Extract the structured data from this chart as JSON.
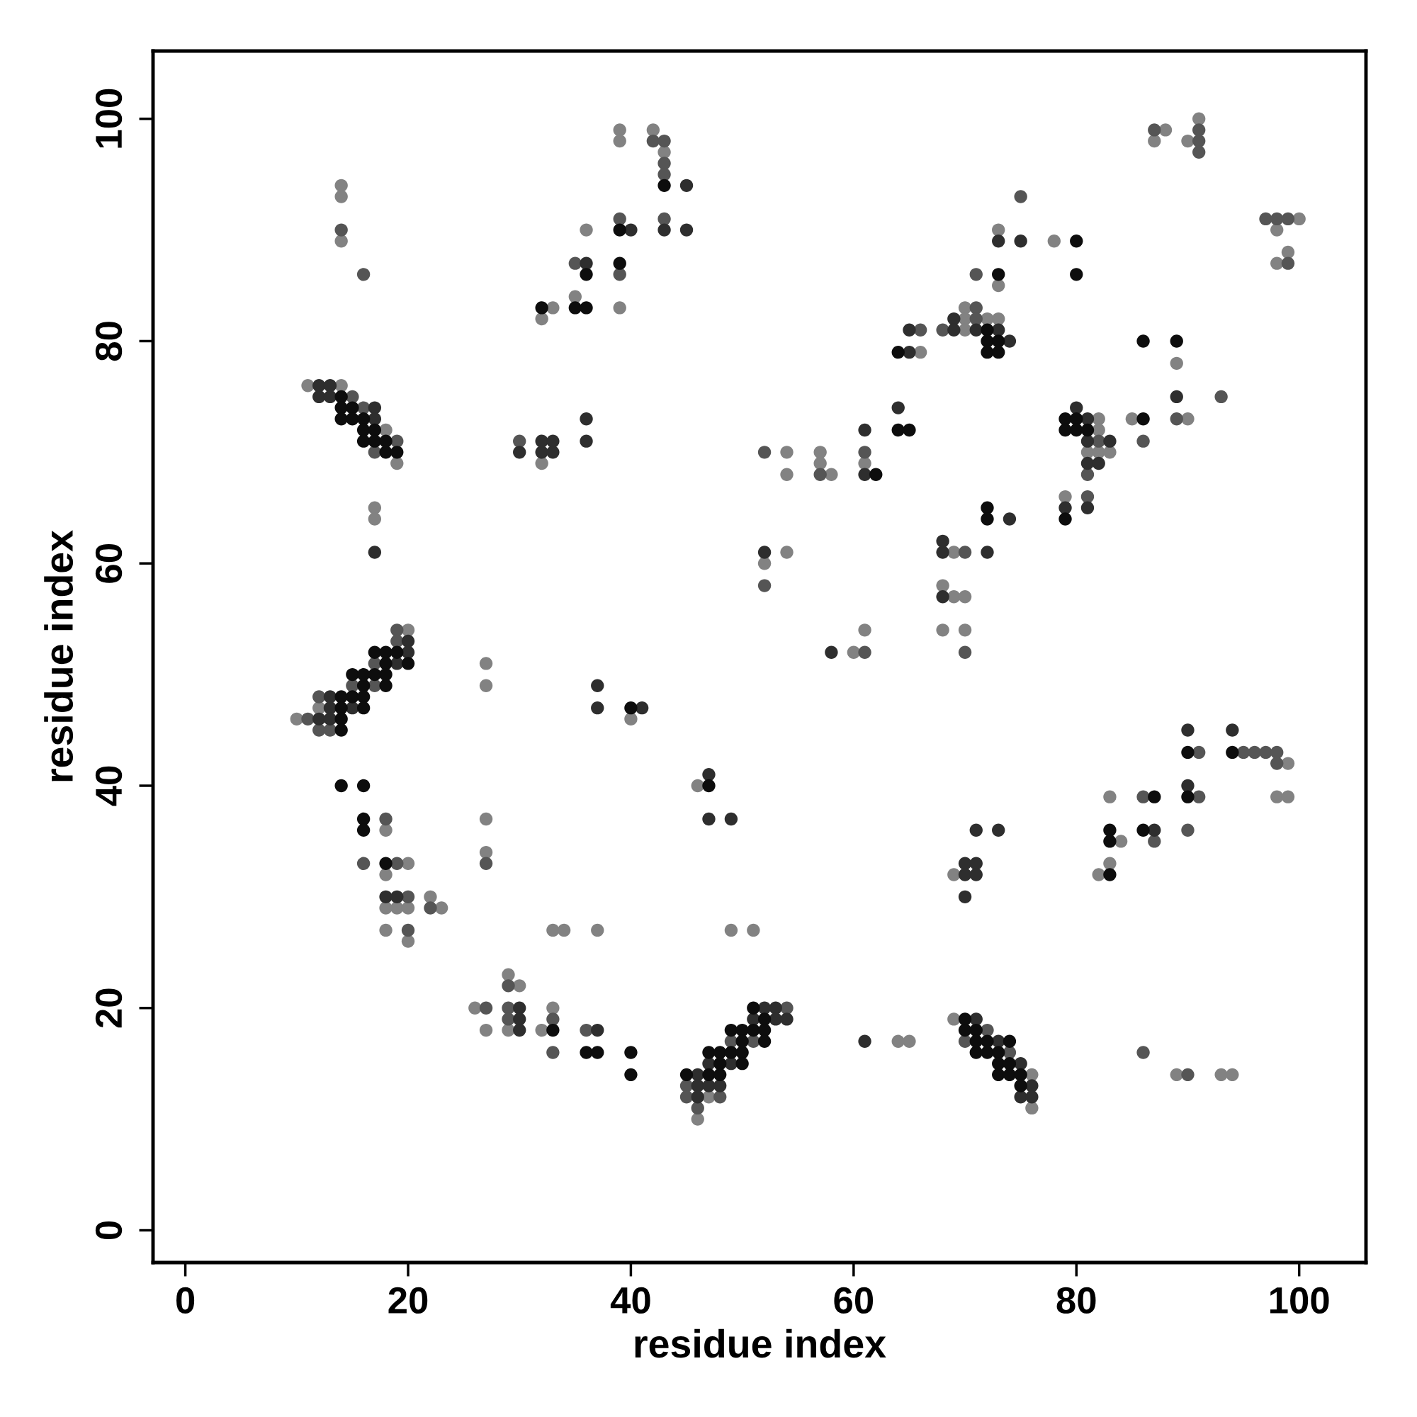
{
  "chart_data": {
    "type": "scatter",
    "xlabel": "residue index",
    "ylabel": "residue index",
    "xlim": [
      -2.9,
      106
    ],
    "ylim": [
      -2.9,
      106.1
    ],
    "xticks": [
      0,
      20,
      40,
      60,
      80,
      100
    ],
    "yticks": [
      0,
      20,
      40,
      60,
      80,
      100
    ],
    "grid": false,
    "marker": "circle",
    "series": [
      {
        "color": "#828282",
        "x": [
          14,
          14,
          14,
          11,
          14,
          18,
          19,
          39,
          39,
          42,
          43,
          36,
          35,
          33,
          39,
          32,
          32,
          17,
          17,
          87,
          88,
          90,
          91,
          100,
          98,
          99,
          98,
          73,
          78,
          73,
          70,
          70,
          72,
          73,
          70,
          66,
          89,
          85,
          90,
          82,
          82,
          81,
          82,
          83,
          79,
          54,
          57,
          57,
          61,
          54,
          58,
          69,
          68,
          69,
          70,
          68,
          70,
          54,
          52,
          61,
          60,
          99,
          83,
          98,
          99,
          84,
          83,
          69,
          82,
          20,
          12,
          10,
          27,
          27,
          40,
          46,
          18,
          27,
          27,
          20,
          18,
          22,
          18,
          19,
          20,
          23,
          18,
          20,
          33,
          34,
          37,
          49,
          51,
          29,
          30,
          26,
          33,
          27,
          29,
          32,
          47,
          46,
          64,
          65,
          69,
          76,
          76,
          89,
          93,
          94
        ],
        "values": [
          94,
          93,
          89,
          76,
          76,
          72,
          69,
          99,
          98,
          99,
          97,
          90,
          84,
          83,
          83,
          82,
          69,
          65,
          64,
          98,
          99,
          98,
          100,
          91,
          90,
          88,
          87,
          90,
          89,
          85,
          83,
          82,
          82,
          82,
          81,
          79,
          78,
          73,
          73,
          73,
          72,
          70,
          70,
          70,
          66,
          70,
          70,
          69,
          69,
          68,
          68,
          61,
          58,
          57,
          57,
          54,
          54,
          61,
          60,
          54,
          52,
          42,
          39,
          39,
          39,
          35,
          33,
          32,
          32,
          54,
          47,
          46,
          51,
          49,
          46,
          40,
          36,
          37,
          34,
          33,
          32,
          30,
          29,
          29,
          29,
          29,
          27,
          26,
          27,
          27,
          27,
          27,
          27,
          23,
          22,
          20,
          20,
          18,
          18,
          18,
          12,
          10,
          17,
          17,
          19,
          14,
          11,
          14,
          14,
          14
        ]
      },
      {
        "color": "#555555",
        "x": [
          14,
          16,
          15,
          16,
          19,
          17,
          42,
          43,
          43,
          43,
          39,
          43,
          35,
          39,
          30,
          87,
          91,
          91,
          91,
          75,
          97,
          98,
          99,
          99,
          71,
          71,
          71,
          68,
          66,
          89,
          93,
          86,
          82,
          81,
          81,
          52,
          61,
          57,
          70,
          70,
          52,
          61,
          91,
          95,
          96,
          97,
          98,
          98,
          86,
          91,
          90,
          87,
          19,
          19,
          17,
          15,
          17,
          12,
          11,
          12,
          13,
          18,
          27,
          16,
          19,
          20,
          22,
          20,
          29,
          27,
          29,
          29,
          33,
          36,
          33,
          54,
          49,
          51,
          45,
          45,
          48,
          46,
          72,
          70,
          74,
          86,
          90
        ],
        "values": [
          90,
          86,
          75,
          74,
          71,
          70,
          98,
          98,
          96,
          95,
          91,
          91,
          87,
          86,
          71,
          99,
          99,
          98,
          97,
          93,
          91,
          91,
          91,
          87,
          86,
          83,
          82,
          81,
          81,
          73,
          75,
          71,
          71,
          68,
          66,
          70,
          70,
          68,
          61,
          52,
          58,
          52,
          43,
          43,
          43,
          43,
          43,
          42,
          39,
          39,
          36,
          35,
          54,
          53,
          51,
          49,
          49,
          48,
          46,
          45,
          45,
          37,
          33,
          33,
          33,
          30,
          29,
          27,
          22,
          20,
          20,
          19,
          19,
          18,
          16,
          20,
          17,
          17,
          13,
          12,
          12,
          11,
          18,
          17,
          16,
          16,
          14
        ]
      },
      {
        "color": "#2e2e2e",
        "x": [
          12,
          13,
          12,
          13,
          17,
          17,
          45,
          40,
          43,
          45,
          36,
          36,
          30,
          32,
          32,
          33,
          33,
          36,
          17,
          73,
          75,
          69,
          69,
          71,
          73,
          74,
          65,
          65,
          89,
          80,
          81,
          81,
          83,
          81,
          82,
          79,
          81,
          64,
          61,
          61,
          74,
          68,
          68,
          72,
          68,
          52,
          58,
          90,
          94,
          90,
          71,
          73,
          87,
          70,
          71,
          70,
          71,
          70,
          20,
          20,
          19,
          13,
          13,
          15,
          12,
          13,
          37,
          37,
          41,
          47,
          47,
          49,
          18,
          19,
          30,
          30,
          30,
          37,
          52,
          53,
          51,
          53,
          54,
          47,
          49,
          46,
          46,
          47,
          48,
          46,
          61,
          71,
          73,
          75,
          76,
          75,
          76
        ],
        "values": [
          76,
          76,
          75,
          75,
          74,
          73,
          94,
          90,
          90,
          90,
          87,
          73,
          70,
          71,
          70,
          71,
          70,
          71,
          61,
          89,
          89,
          82,
          81,
          81,
          81,
          80,
          81,
          79,
          75,
          74,
          73,
          71,
          71,
          69,
          69,
          65,
          65,
          74,
          72,
          68,
          64,
          62,
          61,
          61,
          57,
          61,
          52,
          45,
          45,
          40,
          36,
          36,
          36,
          33,
          33,
          32,
          32,
          30,
          53,
          52,
          51,
          48,
          47,
          47,
          46,
          46,
          49,
          47,
          47,
          41,
          37,
          37,
          30,
          30,
          20,
          19,
          18,
          18,
          20,
          20,
          19,
          19,
          19,
          15,
          15,
          14,
          13,
          13,
          13,
          12,
          17,
          19,
          17,
          15,
          13,
          12,
          12
        ]
      },
      {
        "color": "#0d0d0d",
        "x": [
          14,
          14,
          15,
          14,
          15,
          16,
          16,
          17,
          16,
          17,
          18,
          18,
          19,
          43,
          39,
          39,
          36,
          32,
          35,
          36,
          80,
          73,
          80,
          72,
          72,
          73,
          72,
          73,
          64,
          86,
          89,
          86,
          79,
          80,
          79,
          80,
          81,
          79,
          64,
          65,
          62,
          72,
          72,
          90,
          94,
          87,
          90,
          83,
          86,
          83,
          83,
          17,
          18,
          19,
          18,
          20,
          15,
          16,
          17,
          18,
          16,
          18,
          14,
          15,
          16,
          14,
          16,
          14,
          14,
          40,
          47,
          14,
          16,
          16,
          16,
          18,
          33,
          36,
          37,
          40,
          40,
          51,
          52,
          49,
          50,
          51,
          52,
          50,
          52,
          47,
          48,
          49,
          50,
          48,
          50,
          45,
          47,
          48,
          70,
          70,
          71,
          71,
          72,
          74,
          71,
          72,
          73,
          73,
          74,
          73,
          74,
          75,
          75
        ],
        "values": [
          75,
          74,
          74,
          73,
          73,
          73,
          72,
          72,
          71,
          71,
          71,
          70,
          70,
          94,
          90,
          87,
          86,
          83,
          83,
          83,
          89,
          86,
          86,
          81,
          80,
          80,
          79,
          79,
          79,
          80,
          80,
          73,
          73,
          73,
          72,
          72,
          72,
          64,
          72,
          72,
          68,
          65,
          64,
          43,
          43,
          39,
          39,
          36,
          36,
          35,
          32,
          52,
          52,
          52,
          51,
          51,
          50,
          50,
          50,
          50,
          49,
          49,
          48,
          48,
          48,
          47,
          47,
          46,
          45,
          47,
          40,
          40,
          40,
          37,
          36,
          33,
          18,
          16,
          16,
          16,
          14,
          20,
          19,
          18,
          18,
          18,
          18,
          17,
          17,
          16,
          16,
          16,
          16,
          15,
          15,
          14,
          14,
          14,
          19,
          18,
          18,
          17,
          17,
          17,
          16,
          16,
          16,
          15,
          15,
          14,
          14,
          14,
          13
        ]
      }
    ]
  }
}
